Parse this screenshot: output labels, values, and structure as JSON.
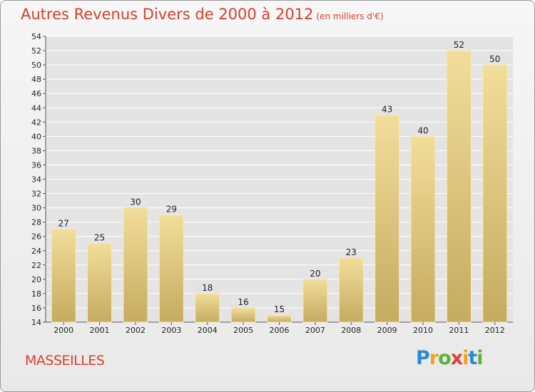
{
  "header": {
    "title": "Autres Revenus Divers de 2000 à 2012",
    "unit": "(en milliers d'€)"
  },
  "footer": {
    "commune": "MASSEILLES",
    "logo_letters": [
      "P",
      "r",
      "o",
      "x",
      "i",
      "t",
      "i"
    ]
  },
  "colors": {
    "title": "#d7402f",
    "bar_light": "#f2dd9a",
    "bar_dark": "#c6ab60",
    "grid": "#ffffff",
    "axis": "#555555"
  },
  "chart_data": {
    "type": "bar",
    "title": "Autres Revenus Divers de 2000 à 2012",
    "xlabel": "",
    "ylabel": "",
    "categories": [
      "2000",
      "2001",
      "2002",
      "2003",
      "2004",
      "2005",
      "2006",
      "2007",
      "2008",
      "2009",
      "2010",
      "2011",
      "2012"
    ],
    "values": [
      27,
      25,
      30,
      29,
      18,
      16,
      15,
      20,
      23,
      43,
      40,
      52,
      50
    ],
    "ylim": [
      14,
      54
    ],
    "yticks": [
      14,
      16,
      18,
      20,
      22,
      24,
      26,
      28,
      30,
      32,
      34,
      36,
      38,
      40,
      42,
      44,
      46,
      48,
      50,
      52,
      54
    ],
    "grid": true,
    "legend": "none"
  }
}
